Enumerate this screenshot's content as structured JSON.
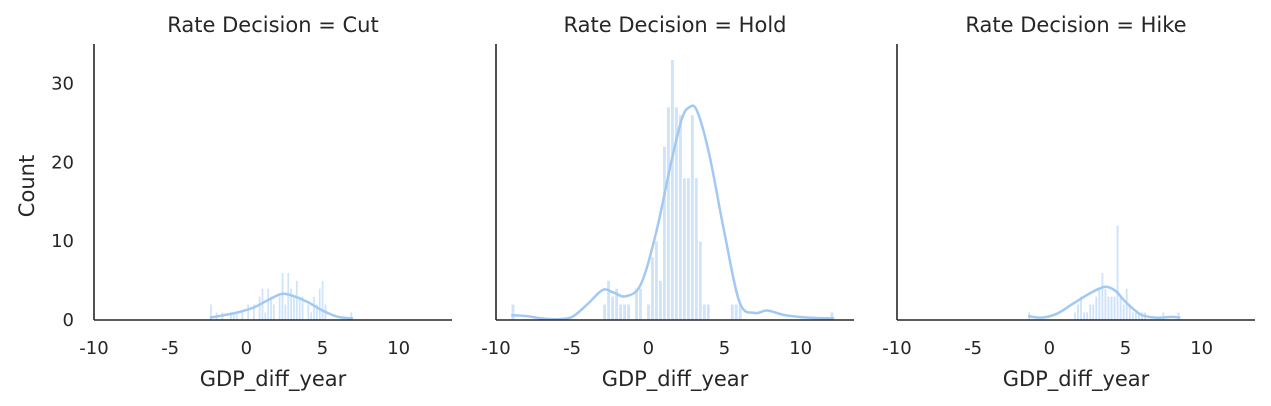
{
  "chart_data": {
    "type": "bar",
    "ylabel": "Count",
    "ylim": [
      0,
      35
    ],
    "xlim": [
      -10,
      13.5
    ],
    "xticks": [
      {
        "value": -10,
        "label": "-10"
      },
      {
        "value": -5,
        "label": "-5"
      },
      {
        "value": 0,
        "label": "0"
      },
      {
        "value": 5,
        "label": "5"
      },
      {
        "value": 10,
        "label": "10"
      }
    ],
    "yticks": [
      {
        "value": 0,
        "label": "0"
      },
      {
        "value": 10,
        "label": "10"
      },
      {
        "value": 20,
        "label": "20"
      },
      {
        "value": 30,
        "label": "30"
      }
    ],
    "bar_color": "#a1c9f4",
    "kde_color": "#a1c9f4",
    "grid": false,
    "panels": [
      {
        "title": "Rate Decision = Cut",
        "xlabel": "GDP_diff_year",
        "bin_edges": [
          -2.4,
          7.0
        ],
        "counts": [
          2,
          0,
          1,
          0,
          1,
          0,
          0,
          1,
          1,
          1,
          0,
          1,
          0,
          2,
          0,
          2,
          0,
          3,
          4,
          1,
          4,
          3,
          2,
          0,
          3,
          6,
          2,
          6,
          4,
          3,
          5,
          3,
          3,
          0,
          2,
          1,
          3,
          2,
          4,
          5,
          2,
          0,
          0,
          0,
          0,
          0,
          0,
          0,
          0,
          1
        ],
        "kde": [
          [
            -2.4,
            0.3
          ],
          [
            -1.5,
            0.6
          ],
          [
            -0.5,
            1.0
          ],
          [
            0.5,
            1.6
          ],
          [
            1.5,
            2.6
          ],
          [
            2.3,
            3.3
          ],
          [
            3.0,
            3.1
          ],
          [
            4.0,
            2.3
          ],
          [
            5.0,
            1.2
          ],
          [
            6.0,
            0.4
          ],
          [
            7.0,
            0.2
          ]
        ]
      },
      {
        "title": "Rate Decision = Hold",
        "xlabel": "GDP_diff_year",
        "bin_edges": [
          -9.0,
          12.2
        ],
        "counts": [
          2,
          0,
          0,
          0,
          0,
          0,
          0,
          0,
          0,
          0,
          0,
          0,
          0,
          0,
          0,
          0,
          0,
          0,
          0,
          0,
          0,
          0,
          0,
          2,
          5,
          3,
          4,
          2,
          2,
          2,
          0,
          4,
          4,
          0,
          2,
          8,
          10,
          5,
          22,
          27,
          33,
          27,
          26,
          18,
          18,
          26,
          18,
          10,
          2,
          2,
          0,
          0,
          0,
          0,
          0,
          2,
          2,
          2,
          0,
          0,
          0,
          0,
          0,
          0,
          0,
          0,
          0,
          0,
          0,
          0,
          0,
          0,
          0,
          0,
          0,
          0,
          0,
          0,
          0,
          0,
          1
        ],
        "kde": [
          [
            -9.0,
            0.6
          ],
          [
            -8.0,
            0.5
          ],
          [
            -7.0,
            0.2
          ],
          [
            -6.0,
            0.1
          ],
          [
            -5.0,
            0.4
          ],
          [
            -4.0,
            2.0
          ],
          [
            -3.0,
            3.8
          ],
          [
            -2.3,
            3.5
          ],
          [
            -1.5,
            3.0
          ],
          [
            -0.5,
            4.5
          ],
          [
            0.5,
            11
          ],
          [
            1.5,
            20
          ],
          [
            2.2,
            25.5
          ],
          [
            2.7,
            27
          ],
          [
            3.2,
            26.5
          ],
          [
            4.0,
            21
          ],
          [
            5.0,
            11
          ],
          [
            6.0,
            2.2
          ],
          [
            7.0,
            0.9
          ],
          [
            7.8,
            1.2
          ],
          [
            9.0,
            0.6
          ],
          [
            10.5,
            0.3
          ],
          [
            12.2,
            0.2
          ]
        ]
      },
      {
        "title": "Rate Decision = Hike",
        "xlabel": "GDP_diff_year",
        "bin_edges": [
          -1.4,
          8.6
        ],
        "counts": [
          1,
          0,
          0,
          0,
          0,
          0,
          0,
          0,
          0,
          0,
          0,
          0,
          0,
          0,
          0,
          1,
          2,
          3,
          1,
          1,
          2,
          2,
          3,
          4,
          6,
          4,
          3,
          3,
          3,
          12,
          3,
          2,
          4,
          2,
          1,
          1,
          1,
          1,
          1,
          0,
          0,
          0,
          0,
          0,
          1,
          0,
          0,
          0,
          0,
          1
        ],
        "kde": [
          [
            -1.4,
            0.5
          ],
          [
            -0.5,
            0.3
          ],
          [
            0.5,
            0.8
          ],
          [
            1.5,
            2.0
          ],
          [
            2.5,
            3.2
          ],
          [
            3.3,
            4.0
          ],
          [
            3.8,
            4.2
          ],
          [
            4.4,
            3.6
          ],
          [
            5.0,
            2.3
          ],
          [
            6.0,
            0.7
          ],
          [
            7.0,
            0.3
          ],
          [
            8.0,
            0.4
          ],
          [
            8.6,
            0.3
          ]
        ]
      }
    ]
  }
}
